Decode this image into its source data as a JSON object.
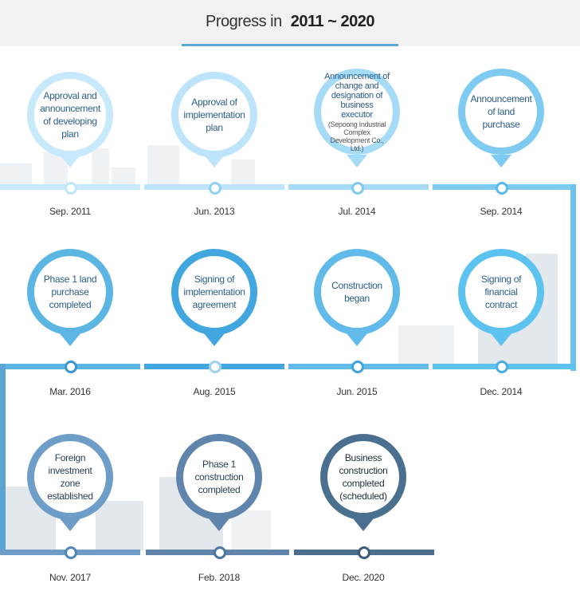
{
  "header": {
    "title_prefix": "Progress in",
    "title_range": "2011 ~ 2020"
  },
  "milestones": [
    {
      "label": "Approval and announcement of developing plan",
      "date": "Sep. 2011"
    },
    {
      "label": "Approval of implementation plan",
      "date": "Jun. 2013"
    },
    {
      "label": "Announcement of change and designation of business executor",
      "sublabel": "(Sepoong Industrial Complex Development Co., Ltd.)",
      "date": "Jul. 2014"
    },
    {
      "label": "Announcement of land purchase",
      "date": "Sep. 2014"
    },
    {
      "label": "Signing of financial contract",
      "date": "Dec. 2014"
    },
    {
      "label": "Construction began",
      "date": "Jun. 2015"
    },
    {
      "label": "Signing of implementation agreement",
      "date": "Aug. 2015"
    },
    {
      "label": "Phase 1 land purchase completed",
      "date": "Mar. 2016"
    },
    {
      "label": "Foreign investment zone established",
      "date": "Nov. 2017"
    },
    {
      "label": "Phase 1 construction completed",
      "date": "Feb. 2018"
    },
    {
      "label": "Business construction completed (scheduled)",
      "date": "Dec. 2020"
    }
  ],
  "colors": {
    "row1": [
      "#c8e9fb",
      "#bde4fa",
      "#a6dbf7",
      "#7fcaf1"
    ],
    "row2": [
      "#5cb6e4",
      "#42a7de",
      "#62baea",
      "#5cc2f0"
    ],
    "row3": [
      "#6e9dc8",
      "#5f85ad",
      "#4a6f8f"
    ]
  }
}
